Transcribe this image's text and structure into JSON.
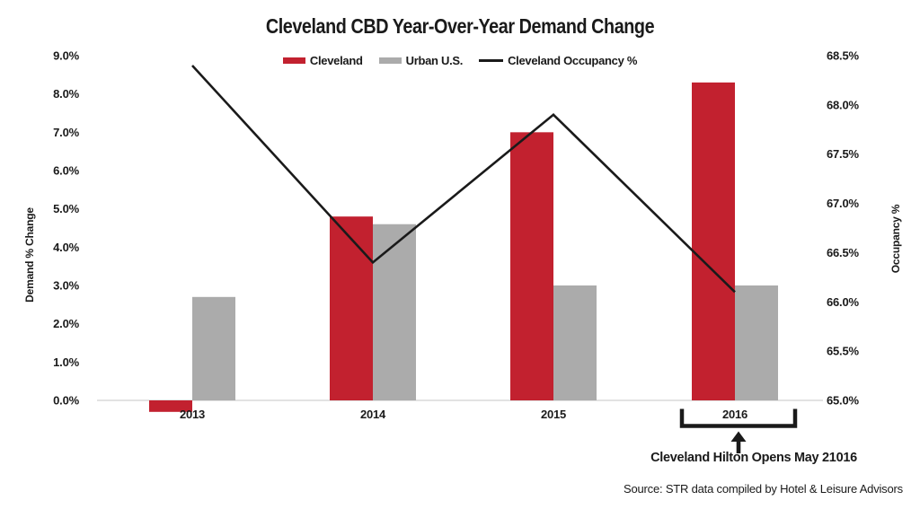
{
  "title": "Cleveland CBD Year-Over-Year Demand Change",
  "legend": {
    "items": [
      {
        "label": "Cleveland",
        "swatch": "bar",
        "color": "#c2212f"
      },
      {
        "label": "Urban U.S.",
        "swatch": "bar",
        "color": "#ababab"
      },
      {
        "label": "Cleveland Occupancy %",
        "swatch": "line",
        "color": "#1a1a1a"
      }
    ]
  },
  "left_axis": {
    "label": "Demand % Change",
    "ticks": [
      "0.0%",
      "1.0%",
      "2.0%",
      "3.0%",
      "4.0%",
      "5.0%",
      "6.0%",
      "7.0%",
      "8.0%",
      "9.0%"
    ]
  },
  "right_axis": {
    "label": "Occupancy %",
    "ticks": [
      "65.0%",
      "65.5%",
      "66.0%",
      "66.5%",
      "67.0%",
      "67.5%",
      "68.0%",
      "68.5%"
    ]
  },
  "x_axis": {
    "categories": [
      "2013",
      "2014",
      "2015",
      "2016"
    ]
  },
  "chart_data": {
    "type": "combo",
    "title": "Cleveland CBD Year-Over-Year Demand Change",
    "categories": [
      "2013",
      "2014",
      "2015",
      "2016"
    ],
    "series": [
      {
        "name": "Cleveland",
        "type": "bar",
        "axis": "left",
        "color": "#c2212f",
        "values": [
          -0.3,
          4.8,
          7.0,
          8.3
        ]
      },
      {
        "name": "Urban U.S.",
        "type": "bar",
        "axis": "left",
        "color": "#ababab",
        "values": [
          2.7,
          4.6,
          3.0,
          3.0
        ]
      },
      {
        "name": "Cleveland Occupancy %",
        "type": "line",
        "axis": "right",
        "color": "#1a1a1a",
        "values": [
          68.4,
          66.4,
          67.9,
          66.1
        ]
      }
    ],
    "left_ylabel": "Demand % Change",
    "right_ylabel": "Occupancy %",
    "left_ylim": [
      0,
      9
    ],
    "right_ylim": [
      65,
      68.5
    ],
    "grid": false,
    "legend_position": "top"
  },
  "annotation": {
    "text": "Cleveland Hilton Opens May 21016",
    "target_category": "2016",
    "arrow": "up"
  },
  "source": "Source: STR data compiled by Hotel & Leisure Advisors",
  "colors": {
    "cleveland_red": "#c2212f",
    "urban_gray": "#ababab",
    "occupancy_line": "#1a1a1a",
    "axis_line": "#d9d9d9"
  }
}
